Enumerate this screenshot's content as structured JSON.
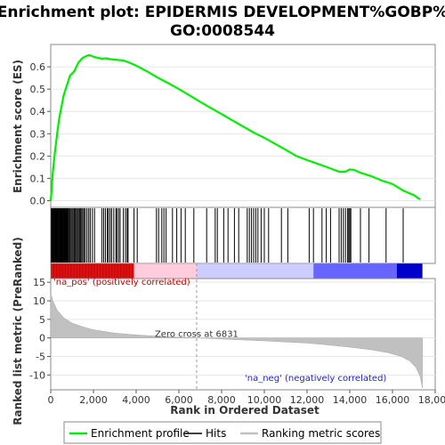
{
  "chart_data": {
    "type": "line",
    "title_line1": "Enrichment plot: EPIDERMIS DEVELOPMENT%GOBP%",
    "title_line2": "GO:0008544",
    "xlabel": "Rank in Ordered Dataset",
    "ylabel_top": "Enrichment score (ES)",
    "ylabel_bottom": "Ranked list metric (PreRanked)",
    "xlim": [
      0,
      18000
    ],
    "x_ticks": [
      "0",
      "2,000",
      "4,000",
      "6,000",
      "8,000",
      "10,000",
      "12,000",
      "14,000",
      "16,000",
      "18,000"
    ],
    "x_tick_values": [
      0,
      2000,
      4000,
      6000,
      8000,
      10000,
      12000,
      14000,
      16000,
      18000
    ],
    "es_ylim": [
      -0.03,
      0.7
    ],
    "es_ticks": [
      "0.0",
      "0.1",
      "0.2",
      "0.3",
      "0.4",
      "0.5",
      "0.6"
    ],
    "es_tick_values": [
      0.0,
      0.1,
      0.2,
      0.3,
      0.4,
      0.5,
      0.6
    ],
    "metric_ylim": [
      -14,
      16
    ],
    "metric_ticks": [
      "15",
      "10",
      "5",
      "0",
      "-5",
      "-10"
    ],
    "metric_tick_values": [
      15,
      10,
      5,
      0,
      -5,
      -10
    ],
    "total_ranks": 17400,
    "zero_cross_rank": 6831,
    "zero_cross_label": "Zero cross at 6831",
    "pos_label": "'na_pos' (positively correlated)",
    "neg_label": "'na_neg' (negatively correlated)",
    "series": [
      {
        "name": "Enrichment profile",
        "color": "#00ee00",
        "x": [
          0,
          50,
          100,
          200,
          300,
          400,
          500,
          600,
          700,
          800,
          900,
          1000,
          1100,
          1200,
          1300,
          1400,
          1500,
          1600,
          1700,
          1800,
          1900,
          2000,
          2200,
          2400,
          2600,
          2800,
          3000,
          3200,
          3400,
          3600,
          3800,
          4000,
          4500,
          5000,
          5500,
          6000,
          6500,
          7000,
          7500,
          8000,
          8500,
          9000,
          9500,
          10000,
          10500,
          11000,
          11500,
          12000,
          12500,
          13000,
          13500,
          13800,
          14000,
          14200,
          14500,
          15000,
          15500,
          16000,
          16500,
          17000,
          17300
        ],
        "y": [
          0.0,
          0.06,
          0.13,
          0.22,
          0.3,
          0.37,
          0.42,
          0.47,
          0.5,
          0.53,
          0.56,
          0.57,
          0.58,
          0.6,
          0.62,
          0.63,
          0.64,
          0.645,
          0.65,
          0.652,
          0.65,
          0.645,
          0.64,
          0.636,
          0.638,
          0.634,
          0.632,
          0.63,
          0.628,
          0.622,
          0.614,
          0.605,
          0.58,
          0.552,
          0.527,
          0.5,
          0.472,
          0.443,
          0.415,
          0.388,
          0.36,
          0.333,
          0.305,
          0.282,
          0.255,
          0.228,
          0.2,
          0.182,
          0.165,
          0.148,
          0.13,
          0.13,
          0.14,
          0.138,
          0.125,
          0.11,
          0.09,
          0.075,
          0.045,
          0.025,
          0.005
        ]
      },
      {
        "name": "Hits",
        "color": "#000000"
      },
      {
        "name": "Ranking metric scores",
        "color": "#c0c0c0",
        "x": [
          0,
          100,
          300,
          600,
          1000,
          1500,
          2000,
          3000,
          4000,
          5000,
          6000,
          6831,
          8000,
          10000,
          12000,
          13000,
          14000,
          15000,
          15800,
          16400,
          16800,
          17100,
          17300,
          17400
        ],
        "y": [
          12,
          10,
          7.5,
          5.5,
          4,
          3,
          2.2,
          1.3,
          0.8,
          0.45,
          0.15,
          0,
          -0.3,
          -0.8,
          -1.4,
          -1.9,
          -2.5,
          -3.2,
          -4.0,
          -5.0,
          -6.2,
          -8.0,
          -10.5,
          -13.5
        ]
      }
    ],
    "hit_ranks": [
      30,
      60,
      90,
      120,
      150,
      180,
      210,
      240,
      270,
      300,
      330,
      360,
      390,
      420,
      450,
      480,
      510,
      540,
      570,
      600,
      630,
      660,
      690,
      720,
      750,
      780,
      810,
      860,
      900,
      950,
      1000,
      1050,
      1100,
      1150,
      1200,
      1250,
      1300,
      1350,
      1400,
      1450,
      1500,
      1560,
      1620,
      1700,
      1780,
      1850,
      1950,
      2050,
      2400,
      2480,
      2560,
      2650,
      2700,
      2780,
      2850,
      2950,
      3050,
      3100,
      3180,
      3250,
      3400,
      3500,
      3580,
      3620,
      3900,
      4050,
      4950,
      5050,
      5200,
      5300,
      5400,
      5700,
      5900,
      6100,
      6300,
      6700,
      7300,
      7700,
      7800,
      8100,
      8300,
      8600,
      8800,
      9200,
      9300,
      9400,
      9500,
      9600,
      9700,
      9850,
      10000,
      10200,
      10800,
      11100,
      12100,
      12300,
      12700,
      12900,
      13100,
      13500,
      13600,
      13700,
      13800,
      13900,
      13950,
      14000,
      14050,
      14500,
      14900,
      15700,
      16500
    ],
    "rank_bar_colors": [
      "#cc0000",
      "#ff9999",
      "#ffccdd",
      "#ccccff",
      "#6666ff",
      "#0000cc"
    ]
  },
  "legend": {
    "enrichment_profile": "Enrichment profile",
    "hits": "Hits",
    "ranking_metric_scores": "Ranking metric scores"
  }
}
